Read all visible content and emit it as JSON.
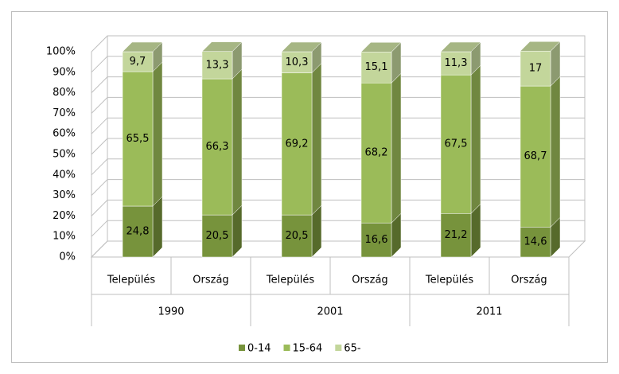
{
  "chart_data": {
    "type": "stacked-bar-3d",
    "categories": [
      "Település",
      "Ország",
      "Település",
      "Ország",
      "Település",
      "Ország"
    ],
    "groups": [
      "1990",
      "2001",
      "2011"
    ],
    "series": [
      {
        "name": "0-14",
        "color": "#77933c",
        "values": [
          24.8,
          20.5,
          20.5,
          16.6,
          21.2,
          14.6
        ],
        "value_labels": [
          "24,8",
          "20,5",
          "20,5",
          "16,6",
          "21,2",
          "14,6"
        ]
      },
      {
        "name": "15-64",
        "color": "#9bbb59",
        "values": [
          65.5,
          66.3,
          69.2,
          68.2,
          67.5,
          68.7
        ],
        "value_labels": [
          "65,5",
          "66,3",
          "69,2",
          "68,2",
          "67,5",
          "68,7"
        ]
      },
      {
        "name": "65-",
        "color": "#c3d69b",
        "values": [
          9.7,
          13.3,
          10.3,
          15.1,
          11.3,
          17
        ],
        "value_labels": [
          "9,7",
          "13,3",
          "10,3",
          "15,1",
          "11,3",
          "17"
        ]
      }
    ],
    "ylim": [
      0,
      100
    ],
    "yticks": [
      {
        "value": 0,
        "label": "0%"
      },
      {
        "value": 10,
        "label": "10%"
      },
      {
        "value": 20,
        "label": "20%"
      },
      {
        "value": 30,
        "label": "30%"
      },
      {
        "value": 40,
        "label": "40%"
      },
      {
        "value": 50,
        "label": "50%"
      },
      {
        "value": 60,
        "label": "60%"
      },
      {
        "value": 70,
        "label": "70%"
      },
      {
        "value": 80,
        "label": "80%"
      },
      {
        "value": 90,
        "label": "90%"
      },
      {
        "value": 100,
        "label": "100%"
      }
    ],
    "grid": true,
    "legend": "bottom"
  }
}
